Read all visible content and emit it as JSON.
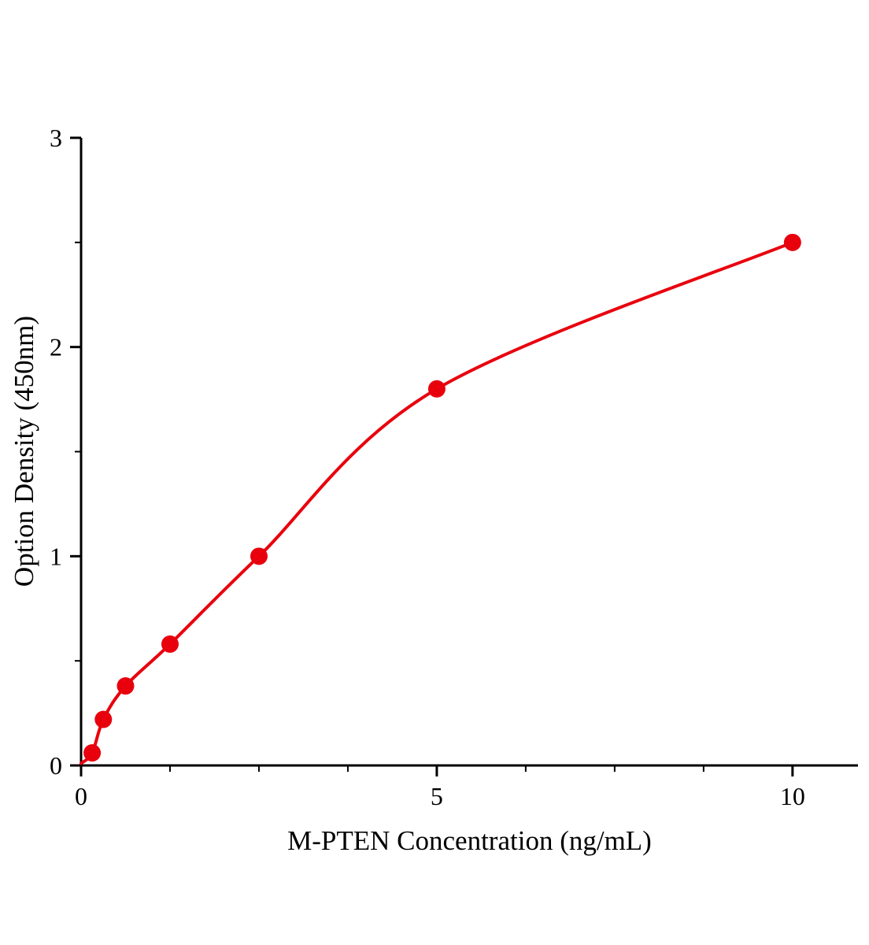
{
  "chart_data": {
    "type": "scatter",
    "title": "",
    "xlabel": "M-PTEN Concentration (ng/mL)",
    "ylabel": "Option Density (450nm)",
    "x": [
      0.156,
      0.313,
      0.625,
      1.25,
      2.5,
      5,
      10
    ],
    "y": [
      0.06,
      0.22,
      0.38,
      0.58,
      1.0,
      1.8,
      2.5
    ],
    "curve_start": {
      "x": 0,
      "y": 0.01
    },
    "x_ticks": [
      0,
      5,
      10
    ],
    "x_tick_labels": [
      "0",
      "5",
      "10"
    ],
    "y_ticks": [
      0,
      1,
      2,
      3
    ],
    "y_tick_labels": [
      "0",
      "1",
      "2",
      "3"
    ],
    "x_minor_ticks": [
      1.25,
      2.5,
      3.75,
      6.25,
      7.5,
      8.75
    ],
    "y_minor_ticks": [
      0.5,
      1.5,
      2.5
    ],
    "xlim": [
      0,
      10.92
    ],
    "ylim": [
      0,
      3
    ],
    "legend": null,
    "grid": false,
    "line_color": "#e8000d",
    "marker_color": "#e8000d",
    "axis_color": "#000000",
    "marker_radius": 11,
    "line_width": 4
  }
}
